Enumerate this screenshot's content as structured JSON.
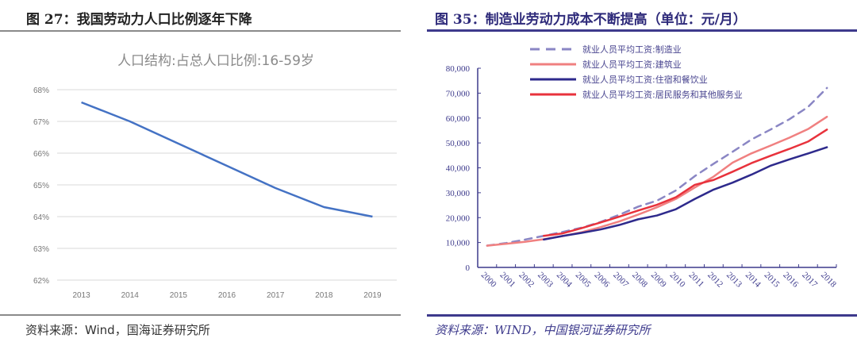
{
  "left": {
    "figure_title": "图 27：我国劳动力人口比例逐年下降",
    "source": "资料来源：Wind，国海证券研究所"
  },
  "right": {
    "figure_title": "图 35：制造业劳动力成本不断提高（单位：元/月）",
    "source": "资料来源：WIND，中国银河证券研究所"
  },
  "chart_data": [
    {
      "type": "line",
      "title": "人口结构:占总人口比例:16-59岁",
      "xlabel": "",
      "ylabel": "",
      "categories": [
        "2013",
        "2014",
        "2015",
        "2016",
        "2017",
        "2018",
        "2019"
      ],
      "series": [
        {
          "name": "人口结构:占总人口比例:16-59岁",
          "values": [
            67.6,
            67.0,
            66.3,
            65.6,
            64.9,
            64.3,
            64.0
          ],
          "color": "#4472c4"
        }
      ],
      "ylim": [
        62,
        68
      ],
      "yticks": [
        "62%",
        "63%",
        "64%",
        "65%",
        "66%",
        "67%",
        "68%"
      ],
      "grid": true,
      "legend": "none"
    },
    {
      "type": "line",
      "title": "",
      "xlabel": "",
      "ylabel": "",
      "categories": [
        "2000",
        "2001",
        "2002",
        "2003",
        "2004",
        "2005",
        "2006",
        "2007",
        "2008",
        "2009",
        "2010",
        "2011",
        "2012",
        "2013",
        "2014",
        "2015",
        "2016",
        "2017",
        "2018"
      ],
      "series": [
        {
          "name": "就业人员平均工资:制造业",
          "style": "dashed",
          "color": "#8a86c4",
          "values": [
            8750,
            9774,
            11152,
            12671,
            14251,
            15934,
            18225,
            21144,
            24404,
            26810,
            30916,
            36665,
            41650,
            46431,
            51369,
            55324,
            59470,
            64452,
            72088
          ]
        },
        {
          "name": "就业人员平均工资:建筑业",
          "style": "solid",
          "color": "#f08080",
          "values": [
            8735,
            9484,
            10279,
            11328,
            12578,
            14112,
            16164,
            18482,
            21223,
            24161,
            27529,
            32103,
            36483,
            42072,
            45804,
            48886,
            52082,
            55568,
            60501
          ]
        },
        {
          "name": "就业人员平均工资:住宿和餐饮业",
          "style": "solid",
          "color": "#2e2a8c",
          "values": [
            null,
            null,
            null,
            11198,
            12618,
            13876,
            15236,
            17046,
            19321,
            20860,
            23382,
            27486,
            31267,
            34044,
            37264,
            40806,
            43382,
            45751,
            48260
          ]
        },
        {
          "name": "就业人员平均工资:居民服务和其他服务业",
          "style": "solid",
          "color": "#e8323c",
          "values": [
            null,
            null,
            null,
            12665,
            13680,
            15747,
            18030,
            20370,
            22858,
            25172,
            28206,
            33169,
            35135,
            38429,
            41882,
            44802,
            47577,
            50552,
            55343
          ]
        }
      ],
      "ylim": [
        0,
        80000
      ],
      "yticks": [
        "0",
        "10,000",
        "20,000",
        "30,000",
        "40,000",
        "50,000",
        "60,000",
        "70,000",
        "80,000"
      ],
      "grid": false,
      "legend": "top-left"
    }
  ]
}
